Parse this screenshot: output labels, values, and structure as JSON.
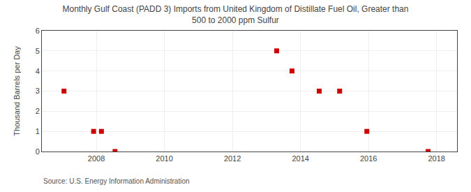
{
  "chart_data": {
    "type": "scatter",
    "title": "Monthly Gulf Coast (PADD 3) Imports from United Kingdom of Distillate Fuel Oil, Greater than\n500 to 2000 ppm Sulfur",
    "ylabel": "Thousand Barrels per Day",
    "source": "Source: U.S. Energy Information Administration",
    "x": [
      2007.05,
      2007.92,
      2008.15,
      2008.55,
      2013.3,
      2013.75,
      2014.55,
      2015.15,
      2015.95,
      2017.75
    ],
    "values": [
      3,
      1,
      1,
      0,
      5,
      4,
      3,
      3,
      1,
      0
    ],
    "color": "#cc0000",
    "marker": "square",
    "xlim": [
      2006.4,
      2018.6
    ],
    "xticks": [
      2008,
      2010,
      2012,
      2014,
      2016,
      2018
    ],
    "ylim": [
      0,
      6
    ],
    "yticks": [
      0,
      1,
      2,
      3,
      4,
      5,
      6
    ],
    "grid": true
  }
}
